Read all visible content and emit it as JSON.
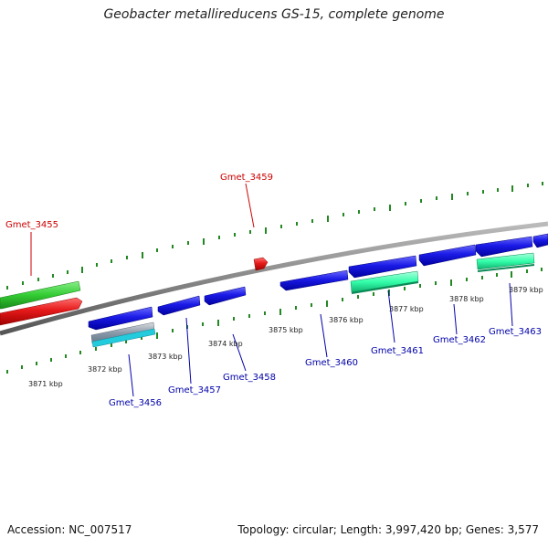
{
  "title": "Geobacter metallireducens GS-15, complete genome",
  "footer": {
    "accession": "Accession: NC_007517",
    "stats": "Topology: circular; Length: 3,997,420 bp; Genes: 3,577"
  },
  "colors": {
    "forward_gene": "#1a1ae6",
    "reverse_gene": "#e61a1a",
    "green_feature": "#33cc33",
    "aqua_feature": "#33ffaa",
    "tick": "#228822",
    "axis": "#888888",
    "label_red": "#cc0000",
    "label_blue": "#0000aa"
  },
  "scale_labels": [
    "3871 kbp",
    "3872 kbp",
    "3873 kbp",
    "3874 kbp",
    "3875 kbp",
    "3876 kbp",
    "3877 kbp",
    "3878 kbp",
    "3879 kbp"
  ],
  "gene_labels": [
    {
      "text": "Gmet_3455",
      "color": "red"
    },
    {
      "text": "Gmet_3459",
      "color": "red"
    },
    {
      "text": "Gmet_3456",
      "color": "blue"
    },
    {
      "text": "Gmet_3457",
      "color": "blue"
    },
    {
      "text": "Gmet_3458",
      "color": "blue"
    },
    {
      "text": "Gmet_3460",
      "color": "blue"
    },
    {
      "text": "Gmet_3461",
      "color": "blue"
    },
    {
      "text": "Gmet_3462",
      "color": "blue"
    },
    {
      "text": "Gmet_3463",
      "color": "blue"
    }
  ]
}
